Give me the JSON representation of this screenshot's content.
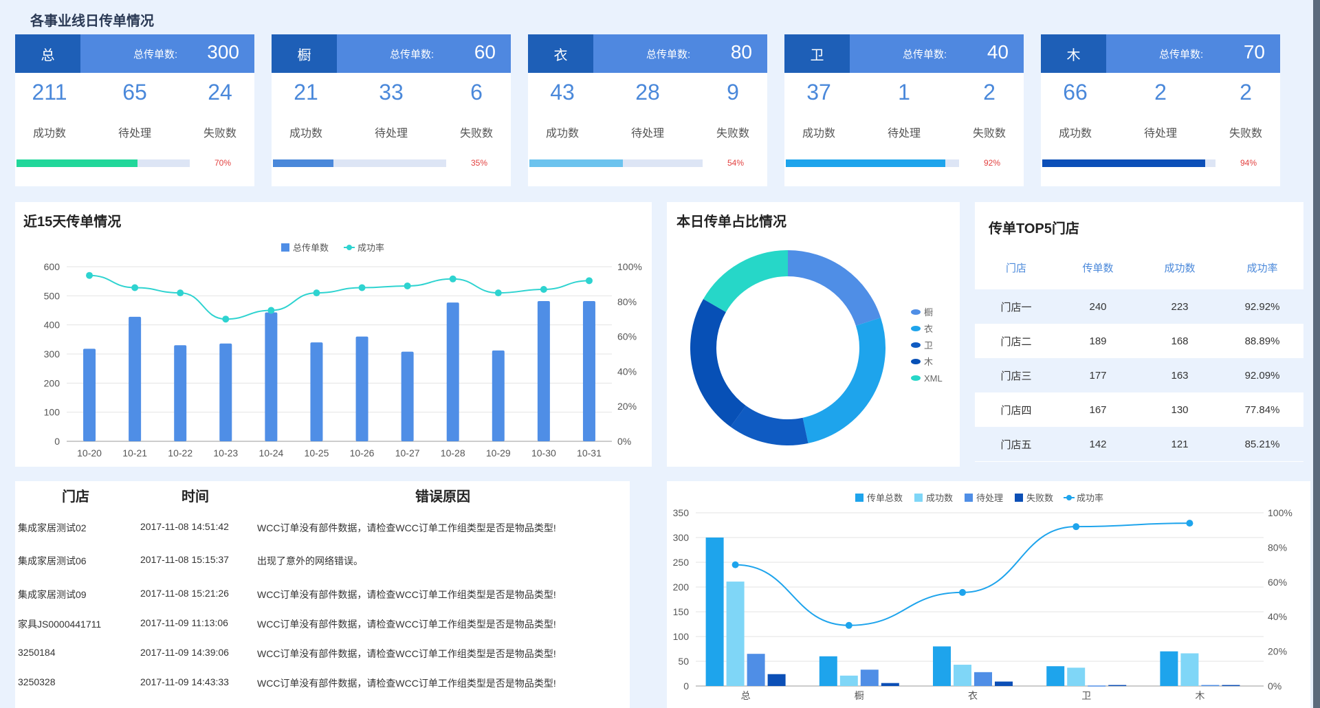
{
  "header": {
    "title": "各事业线日传单情况"
  },
  "cards": [
    {
      "tag": "总",
      "total_label": "总传单数:",
      "total": "300",
      "success": "211",
      "pending": "65",
      "fail": "24",
      "l_success": "成功数",
      "l_pending": "待处理",
      "l_fail": "失败数",
      "progress": 0.7,
      "pct": "70%",
      "color": "#21d79a"
    },
    {
      "tag": "橱",
      "total_label": "总传单数:",
      "total": "60",
      "success": "21",
      "pending": "33",
      "fail": "6",
      "l_success": "成功数",
      "l_pending": "待处理",
      "l_fail": "失败数",
      "progress": 0.35,
      "pct": "35%",
      "color": "#4a88da"
    },
    {
      "tag": "衣",
      "total_label": "总传单数:",
      "total": "80",
      "success": "43",
      "pending": "28",
      "fail": "9",
      "l_success": "成功数",
      "l_pending": "待处理",
      "l_fail": "失败数",
      "progress": 0.54,
      "pct": "54%",
      "color": "#6cc3ee"
    },
    {
      "tag": "卫",
      "total_label": "总传单数:",
      "total": "40",
      "success": "37",
      "pending": "1",
      "fail": "2",
      "l_success": "成功数",
      "l_pending": "待处理",
      "l_fail": "失败数",
      "progress": 0.92,
      "pct": "92%",
      "color": "#1ea4ec"
    },
    {
      "tag": "木",
      "total_label": "总传单数:",
      "total": "70",
      "success": "66",
      "pending": "2",
      "fail": "2",
      "l_success": "成功数",
      "l_pending": "待处理",
      "l_fail": "失败数",
      "progress": 0.94,
      "pct": "94%",
      "color": "#0b4fb8"
    }
  ],
  "trend": {
    "title": "近15天传单情况"
  },
  "share": {
    "title": "本日传单占比情况"
  },
  "top5": {
    "title": "传单TOP5门店",
    "headers": [
      "门店",
      "传单数",
      "成功数",
      "成功率"
    ],
    "rows": [
      [
        "门店一",
        "240",
        "223",
        "92.92%"
      ],
      [
        "门店二",
        "189",
        "168",
        "88.89%"
      ],
      [
        "门店三",
        "177",
        "163",
        "92.09%"
      ],
      [
        "门店四",
        "167",
        "130",
        "77.84%"
      ],
      [
        "门店五",
        "142",
        "121",
        "85.21%"
      ]
    ]
  },
  "errors": {
    "headers": [
      "门店",
      "时间",
      "错误原因"
    ],
    "rows": [
      [
        "集成家居测试02",
        "2017-11-08 14:51:42",
        "WCC订单没有部件数据，请检查WCC订单工作组类型是否是物品类型!"
      ],
      [
        "集成家居测试06",
        "2017-11-08 15:15:37",
        "出现了意外的网络错误。"
      ],
      [
        "集成家居测试09",
        "2017-11-08 15:21:26",
        "WCC订单没有部件数据，请检查WCC订单工作组类型是否是物品类型!"
      ],
      [
        "家具JS0000441711",
        "2017-11-09 11:13:06",
        "WCC订单没有部件数据，请检查WCC订单工作组类型是否是物品类型!"
      ],
      [
        "3250184",
        "2017-11-09 14:39:06",
        "WCC订单没有部件数据，请检查WCC订单工作组类型是否是物品类型!"
      ],
      [
        "3250328",
        "2017-11-09 14:43:33",
        "WCC订单没有部件数据，请检查WCC订单工作组类型是否是物品类型!"
      ]
    ]
  },
  "chart_data": [
    {
      "type": "bar",
      "title": "近15天传单情况",
      "categories": [
        "10-20",
        "10-21",
        "10-22",
        "10-23",
        "10-24",
        "10-25",
        "10-26",
        "10-27",
        "10-28",
        "10-29",
        "10-30",
        "10-31"
      ],
      "series": [
        {
          "name": "总传单数",
          "type": "bar",
          "values": [
            318,
            428,
            330,
            336,
            443,
            340,
            360,
            308,
            477,
            312,
            482,
            482
          ],
          "color": "#4f8ee6"
        },
        {
          "name": "成功率",
          "type": "line",
          "axis": "right",
          "values": [
            95,
            88,
            85,
            70,
            75,
            85,
            88,
            89,
            93,
            85,
            87,
            92
          ],
          "color": "#2ed3d0"
        }
      ],
      "ylim": [
        0,
        600
      ],
      "yticks": [
        "0",
        "100",
        "200",
        "300",
        "400",
        "500",
        "600"
      ],
      "ylim_right": [
        0,
        100
      ],
      "yticks_right": [
        "0%",
        "20%",
        "40%",
        "60%",
        "80%",
        "100%"
      ],
      "legend": "top-center"
    },
    {
      "type": "pie",
      "title": "本日传单占比情况",
      "legend": "right",
      "slices": [
        {
          "name": "橱",
          "value": 60,
          "color": "#4f8ee6"
        },
        {
          "name": "衣",
          "value": 80,
          "color": "#1ea4ec"
        },
        {
          "name": "卫",
          "value": 40,
          "color": "#0f5bc2"
        },
        {
          "name": "木",
          "value": 70,
          "color": "#0750b6"
        },
        {
          "name": "XML",
          "value": 50,
          "color": "#26d7c8"
        }
      ]
    },
    {
      "type": "bar",
      "categories": [
        "总",
        "橱",
        "衣",
        "卫",
        "木"
      ],
      "series": [
        {
          "name": "传单总数",
          "type": "bar",
          "values": [
            300,
            60,
            80,
            40,
            70
          ],
          "color": "#1ea4ec"
        },
        {
          "name": "成功数",
          "type": "bar",
          "values": [
            211,
            21,
            43,
            37,
            66
          ],
          "color": "#7fd6f7"
        },
        {
          "name": "待处理",
          "type": "bar",
          "values": [
            65,
            33,
            28,
            1,
            2
          ],
          "color": "#4f8ee6"
        },
        {
          "name": "失败数",
          "type": "bar",
          "values": [
            24,
            6,
            9,
            2,
            2
          ],
          "color": "#0c4fb6"
        },
        {
          "name": "成功率",
          "type": "line",
          "axis": "right",
          "values": [
            70,
            35,
            54,
            92,
            94
          ],
          "color": "#1ea4ec"
        }
      ],
      "ylim": [
        0,
        350
      ],
      "yticks": [
        "0",
        "50",
        "100",
        "150",
        "200",
        "250",
        "300",
        "350"
      ],
      "ylim_right": [
        0,
        100
      ],
      "yticks_right": [
        "0%",
        "20%",
        "40%",
        "60%",
        "80%",
        "100%"
      ],
      "legend": "top-center"
    }
  ]
}
